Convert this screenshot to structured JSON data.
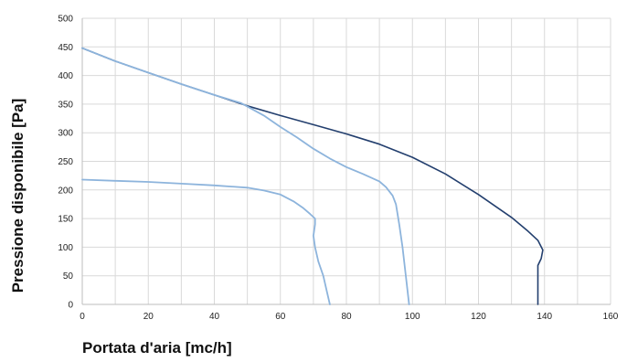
{
  "chart_data": {
    "type": "line",
    "xlabel": "Portata d'aria [mc/h]",
    "ylabel": "Pressione disponibile [Pa]",
    "xlim": [
      0,
      160
    ],
    "ylim": [
      0,
      500
    ],
    "xticks": [
      0,
      20,
      40,
      60,
      80,
      100,
      120,
      140,
      160
    ],
    "yticks": [
      0,
      50,
      100,
      150,
      200,
      250,
      300,
      350,
      400,
      450,
      500
    ],
    "x_minor_step": 10,
    "grid": true,
    "legend": "none",
    "series": [
      {
        "color": "#233f6e",
        "points": [
          [
            0,
            448
          ],
          [
            10,
            425
          ],
          [
            20,
            405
          ],
          [
            30,
            385
          ],
          [
            40,
            366
          ],
          [
            50,
            347
          ],
          [
            60,
            330
          ],
          [
            70,
            314
          ],
          [
            80,
            298
          ],
          [
            90,
            280
          ],
          [
            100,
            257
          ],
          [
            110,
            228
          ],
          [
            120,
            192
          ],
          [
            130,
            152
          ],
          [
            135,
            128
          ],
          [
            138,
            112
          ],
          [
            139.5,
            95
          ],
          [
            139,
            80
          ],
          [
            138,
            68
          ],
          [
            138,
            0
          ]
        ]
      },
      {
        "color": "#8db4dc",
        "points": [
          [
            0,
            448
          ],
          [
            10,
            425
          ],
          [
            20,
            405
          ],
          [
            30,
            385
          ],
          [
            40,
            366
          ],
          [
            48,
            352
          ],
          [
            55,
            330
          ],
          [
            60,
            310
          ],
          [
            65,
            292
          ],
          [
            70,
            272
          ],
          [
            75,
            255
          ],
          [
            80,
            240
          ],
          [
            85,
            228
          ],
          [
            90,
            215
          ],
          [
            92,
            205
          ],
          [
            94,
            190
          ],
          [
            95,
            175
          ],
          [
            96,
            140
          ],
          [
            97,
            100
          ],
          [
            98,
            50
          ],
          [
            99,
            0
          ]
        ]
      },
      {
        "color": "#8db4dc",
        "points": [
          [
            0,
            218
          ],
          [
            10,
            216
          ],
          [
            20,
            214
          ],
          [
            30,
            211
          ],
          [
            40,
            208
          ],
          [
            50,
            204
          ],
          [
            55,
            199
          ],
          [
            60,
            192
          ],
          [
            64,
            180
          ],
          [
            67,
            168
          ],
          [
            69,
            158
          ],
          [
            70.5,
            150
          ],
          [
            70.5,
            140
          ],
          [
            70,
            120
          ],
          [
            70.5,
            100
          ],
          [
            71.5,
            75
          ],
          [
            73,
            50
          ],
          [
            74,
            25
          ],
          [
            75,
            0
          ]
        ]
      }
    ]
  }
}
